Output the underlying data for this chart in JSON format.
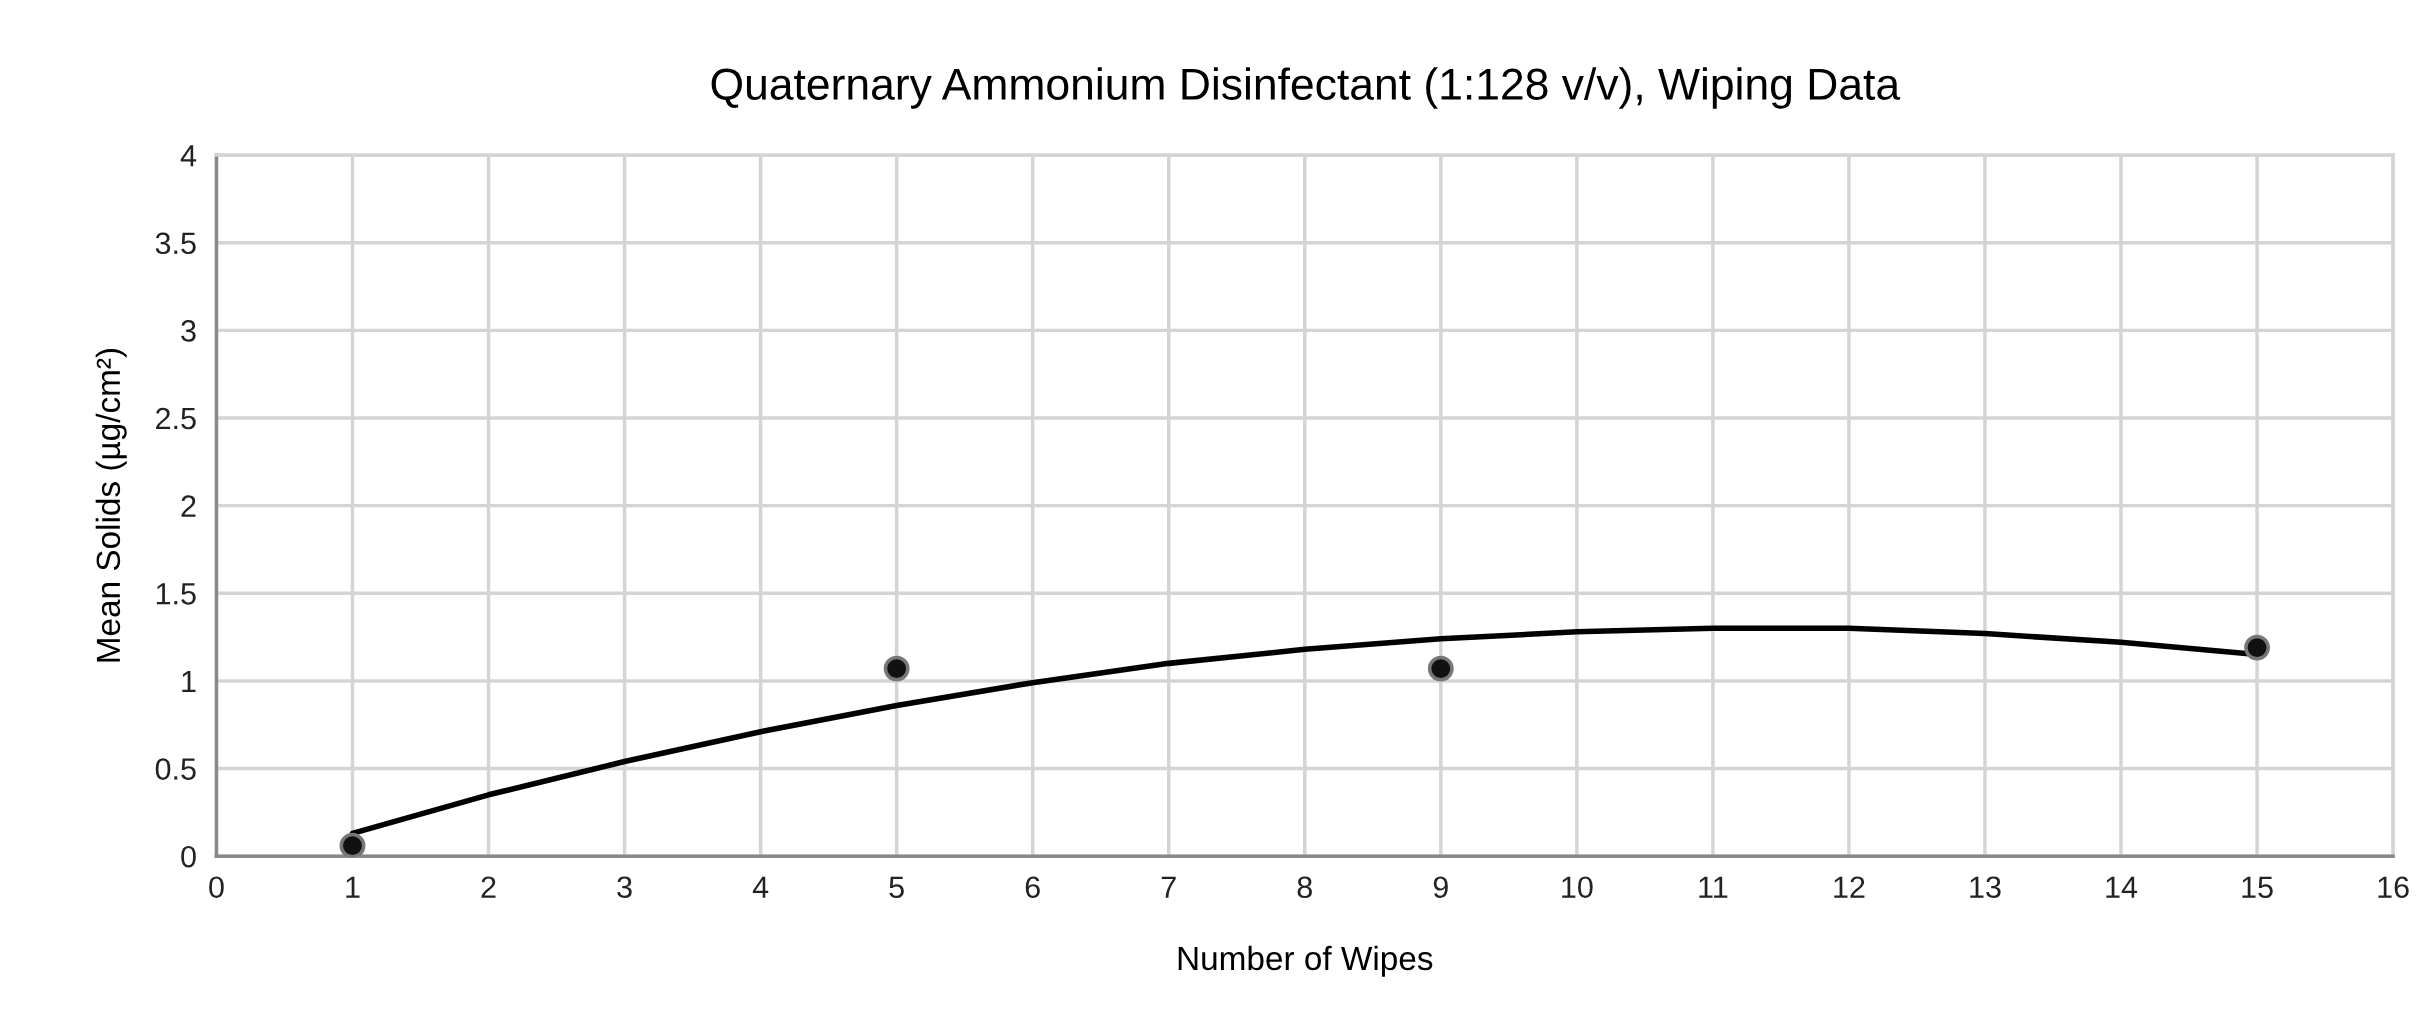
{
  "chart_data": {
    "type": "scatter",
    "title": "Quaternary Ammonium Disinfectant (1:128 v/v), Wiping Data",
    "xlabel": "Number of Wipes",
    "ylabel": "Mean Solids (µg/cm²)",
    "series": [
      {
        "color": "#111111",
        "marker": "circle",
        "x": [
          1,
          5,
          9,
          15
        ],
        "values": [
          0.06,
          1.07,
          1.07,
          1.19
        ]
      },
      {
        "type": "line",
        "color": "#000000",
        "line_style": "solid",
        "x": [
          1,
          2,
          3,
          4,
          5,
          6,
          7,
          8,
          9,
          10,
          11,
          12,
          13,
          14,
          15
        ],
        "values": [
          0.13,
          0.35,
          0.54,
          0.71,
          0.86,
          0.99,
          1.1,
          1.18,
          1.24,
          1.28,
          1.3,
          1.3,
          1.27,
          1.22,
          1.15
        ]
      }
    ],
    "xlim": [
      0,
      16
    ],
    "xticks": [
      0,
      1,
      2,
      3,
      4,
      5,
      6,
      7,
      8,
      9,
      10,
      11,
      12,
      13,
      14,
      15,
      16
    ],
    "ylim": [
      0,
      4
    ],
    "yticks": [
      0,
      0.5,
      1,
      1.5,
      2,
      2.5,
      3,
      3.5,
      4
    ],
    "grid": true
  }
}
